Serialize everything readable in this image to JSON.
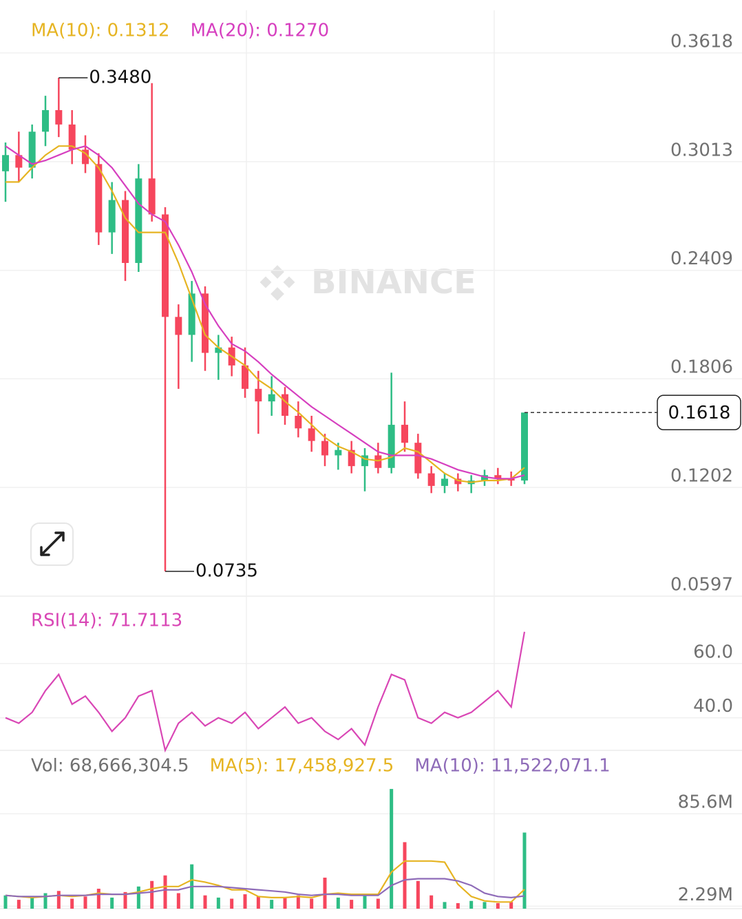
{
  "chart_data": [
    {
      "type": "candlestick",
      "watermark": "BINANCE",
      "up_color": "#2ebd85",
      "down_color": "#f6465d",
      "open": [
        0.296,
        0.305,
        0.298,
        0.318,
        0.33,
        0.322,
        0.308,
        0.3,
        0.262,
        0.28,
        0.245,
        0.292,
        0.272,
        0.215,
        0.205,
        0.228,
        0.195,
        0.198,
        0.188,
        0.175,
        0.168,
        0.172,
        0.16,
        0.153,
        0.146,
        0.138,
        0.141,
        0.132,
        0.138,
        0.131,
        0.155,
        0.145,
        0.128,
        0.121,
        0.125,
        0.122,
        0.124,
        0.127,
        0.125,
        0.124
      ],
      "high": [
        0.312,
        0.318,
        0.322,
        0.338,
        0.348,
        0.33,
        0.316,
        0.306,
        0.29,
        0.285,
        0.3,
        0.345,
        0.276,
        0.222,
        0.235,
        0.232,
        0.205,
        0.204,
        0.198,
        0.185,
        0.182,
        0.176,
        0.168,
        0.16,
        0.15,
        0.145,
        0.146,
        0.142,
        0.145,
        0.184,
        0.168,
        0.15,
        0.132,
        0.128,
        0.128,
        0.127,
        0.13,
        0.131,
        0.129,
        0.1618
      ],
      "low": [
        0.279,
        0.29,
        0.292,
        0.31,
        0.315,
        0.3,
        0.295,
        0.255,
        0.25,
        0.235,
        0.24,
        0.268,
        0.0735,
        0.175,
        0.19,
        0.185,
        0.18,
        0.182,
        0.17,
        0.15,
        0.16,
        0.155,
        0.148,
        0.14,
        0.132,
        0.13,
        0.128,
        0.118,
        0.128,
        0.128,
        0.14,
        0.125,
        0.117,
        0.117,
        0.118,
        0.117,
        0.121,
        0.122,
        0.121,
        0.122
      ],
      "close": [
        0.305,
        0.298,
        0.318,
        0.33,
        0.322,
        0.308,
        0.3,
        0.262,
        0.28,
        0.245,
        0.292,
        0.272,
        0.215,
        0.205,
        0.228,
        0.195,
        0.198,
        0.188,
        0.175,
        0.168,
        0.172,
        0.16,
        0.153,
        0.146,
        0.138,
        0.141,
        0.132,
        0.138,
        0.131,
        0.155,
        0.145,
        0.128,
        0.121,
        0.125,
        0.122,
        0.124,
        0.127,
        0.125,
        0.124,
        0.1618
      ],
      "series": [
        {
          "name": "MA(10): 0.1312",
          "color": "#e6b422",
          "values": [
            0.29,
            0.29,
            0.298,
            0.305,
            0.31,
            0.31,
            0.306,
            0.298,
            0.285,
            0.27,
            0.262,
            0.262,
            0.262,
            0.245,
            0.225,
            0.205,
            0.198,
            0.193,
            0.188,
            0.18,
            0.175,
            0.168,
            0.162,
            0.155,
            0.148,
            0.143,
            0.14,
            0.136,
            0.135,
            0.137,
            0.142,
            0.14,
            0.134,
            0.128,
            0.124,
            0.123,
            0.124,
            0.124,
            0.125,
            0.1312
          ]
        },
        {
          "name": "MA(20): 0.1270",
          "color": "#d63fbf",
          "values": [
            0.31,
            0.305,
            0.3,
            0.302,
            0.305,
            0.308,
            0.31,
            0.305,
            0.298,
            0.288,
            0.278,
            0.272,
            0.268,
            0.255,
            0.24,
            0.222,
            0.21,
            0.2,
            0.196,
            0.19,
            0.183,
            0.177,
            0.171,
            0.165,
            0.16,
            0.155,
            0.15,
            0.145,
            0.14,
            0.138,
            0.138,
            0.138,
            0.136,
            0.133,
            0.13,
            0.128,
            0.126,
            0.125,
            0.125,
            0.127
          ]
        }
      ],
      "annotations": [
        {
          "value": 0.348,
          "label": "0.3480"
        },
        {
          "value": 0.0735,
          "label": "0.0735"
        }
      ],
      "last_price": {
        "value": 0.1618,
        "label": "0.1618"
      },
      "ylim": [
        0.0597,
        0.3855
      ],
      "yticks": [
        {
          "value": 0.3618,
          "label": "0.3618"
        },
        {
          "value": 0.3013,
          "label": "0.3013"
        },
        {
          "value": 0.2409,
          "label": "0.2409"
        },
        {
          "value": 0.1806,
          "label": "0.1806"
        },
        {
          "value": 0.1202,
          "label": "0.1202"
        },
        {
          "value": 0.0597,
          "label": "0.0597"
        }
      ],
      "grid": true
    },
    {
      "type": "line",
      "series": [
        {
          "name": "RSI(14): 71.7113",
          "color": "#d946b5",
          "values": [
            40,
            38,
            42,
            50,
            56,
            45,
            48,
            42,
            35,
            40,
            48,
            50,
            28,
            38,
            42,
            37,
            40,
            38,
            42,
            36,
            40,
            44,
            38,
            40,
            35,
            32,
            36,
            30,
            44,
            56,
            54,
            40,
            38,
            42,
            40,
            42,
            46,
            50,
            44,
            71.7113
          ]
        }
      ],
      "ylim": [
        28,
        81.3
      ],
      "yticks": [
        {
          "value": 60,
          "label": "60.0"
        },
        {
          "value": 40,
          "label": "40.0"
        }
      ],
      "grid": true
    },
    {
      "type": "bar",
      "label": "Vol: 68,666,304.5",
      "values": [
        12,
        8,
        10,
        14,
        16,
        9,
        11,
        18,
        10,
        15,
        20,
        25,
        30,
        14,
        40,
        12,
        10,
        9,
        13,
        11,
        8,
        10,
        12,
        9,
        28,
        10,
        8,
        12,
        9,
        108,
        60,
        25,
        12,
        6,
        5,
        7,
        6,
        5,
        6,
        68.67
      ],
      "series": [
        {
          "name": "MA(5): 17,458,927.5",
          "color": "#e6b422",
          "values": [
            12,
            11,
            10,
            11,
            12,
            11,
            12,
            14,
            13,
            13,
            15,
            18,
            20,
            20,
            26,
            24,
            21,
            17,
            17,
            11,
            10,
            10,
            11,
            10,
            13,
            14,
            13,
            13,
            13,
            33,
            43,
            43,
            43,
            42,
            22,
            11,
            7,
            6,
            6,
            17.46
          ]
        },
        {
          "name": "MA(10): 11,522,071.1",
          "color": "#8e6bb8",
          "values": [
            12,
            11,
            11,
            11,
            12,
            12,
            12,
            13,
            13,
            13,
            14,
            15,
            17,
            17,
            20,
            20,
            20,
            19,
            18,
            17,
            16,
            15,
            13,
            12,
            13,
            13,
            12,
            12,
            12,
            21,
            26,
            27,
            27,
            27,
            25,
            21,
            14,
            11,
            10,
            11.52
          ]
        }
      ],
      "ylim": [
        0,
        118
      ],
      "yticks": [
        {
          "value": 85.6,
          "label": "85.6M"
        },
        {
          "value": 2.29,
          "label": "2.29M"
        }
      ],
      "grid": true
    }
  ]
}
